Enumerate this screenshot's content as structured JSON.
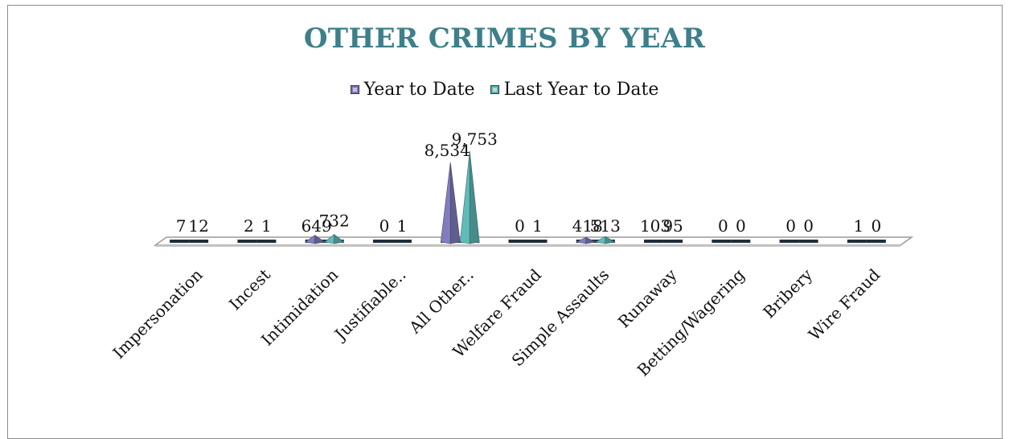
{
  "chart_data": {
    "type": "bar",
    "title": "OTHER CRIMES BY YEAR",
    "categories": [
      "Impersonation",
      "Incest",
      "Intimidation",
      "Justifiable..",
      "All Other..",
      "Welfare Fraud",
      "Simple Assaults",
      "Runaway",
      "Betting/Wagering",
      "Bribery",
      "Wire Fraud"
    ],
    "series": [
      {
        "name": "Year to Date",
        "values": [
          7,
          2,
          649,
          0,
          8534,
          0,
          418,
          103,
          0,
          0,
          1
        ],
        "labels": [
          "7",
          "2",
          "649",
          "0",
          "8,534",
          "0",
          "418",
          "103",
          "0",
          "0",
          "1"
        ],
        "color": "#7b78b5"
      },
      {
        "name": "Last Year to Date",
        "values": [
          12,
          1,
          732,
          1,
          9753,
          1,
          513,
          95,
          0,
          0,
          0
        ],
        "labels": [
          "12",
          "1",
          "732",
          "1",
          "9,753",
          "1",
          "513",
          "95",
          "0",
          "0",
          "0"
        ],
        "color": "#5bb3b0"
      }
    ],
    "ylim": [
      0,
      9753
    ],
    "legend_position": "top",
    "grid": false
  }
}
